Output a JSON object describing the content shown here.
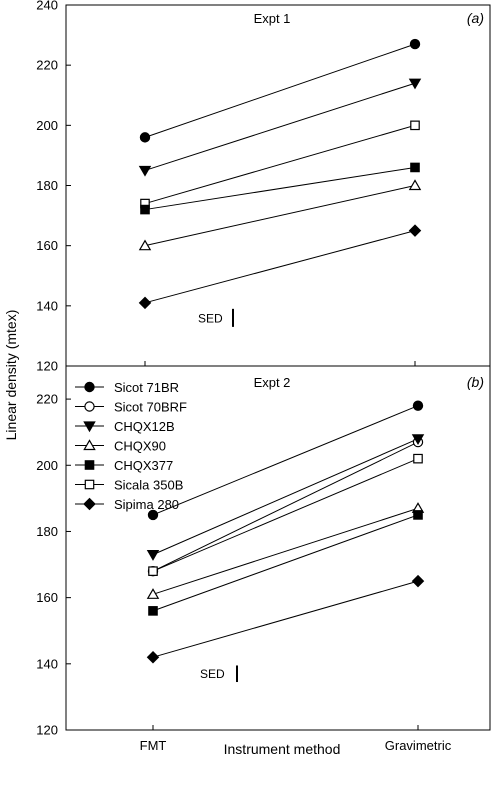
{
  "figure": {
    "ylabel": "Linear density (mtex)",
    "xlabel": "Instrument method",
    "sed_label": "SED"
  },
  "chart_data": [
    {
      "type": "line",
      "panel_label": "(a)",
      "title": "Expt 1",
      "categories": [
        "FMT",
        "Gravimetric"
      ],
      "ylim": [
        120,
        240
      ],
      "yticks": [
        120,
        140,
        160,
        180,
        200,
        220,
        240
      ],
      "sed": 6,
      "series": [
        {
          "marker": "circle-filled",
          "values": [
            196,
            227
          ]
        },
        {
          "marker": "triangle-down-filled",
          "values": [
            185,
            214
          ]
        },
        {
          "marker": "square-open",
          "values": [
            174,
            200
          ]
        },
        {
          "marker": "square-filled",
          "values": [
            172,
            186
          ]
        },
        {
          "marker": "triangle-up-open",
          "values": [
            160,
            180
          ]
        },
        {
          "marker": "diamond-filled",
          "values": [
            141,
            165
          ]
        }
      ]
    },
    {
      "type": "line",
      "panel_label": "(b)",
      "title": "Expt 2",
      "categories": [
        "FMT",
        "Gravimetric"
      ],
      "ylim": [
        120,
        230
      ],
      "yticks": [
        120,
        140,
        160,
        180,
        200,
        220
      ],
      "sed": 5,
      "legend": "top-left",
      "series": [
        {
          "name": "Sicot 71BR",
          "marker": "circle-filled",
          "values": [
            185,
            218
          ]
        },
        {
          "name": "Sicot 70BRF",
          "marker": "circle-open",
          "values": [
            168,
            207
          ]
        },
        {
          "name": "CHQX12B",
          "marker": "triangle-down-filled",
          "values": [
            173,
            208
          ]
        },
        {
          "name": "CHQX90",
          "marker": "triangle-up-open",
          "values": [
            161,
            187
          ]
        },
        {
          "name": "CHQX377",
          "marker": "square-filled",
          "values": [
            156,
            185
          ]
        },
        {
          "name": "Sicala 350B",
          "marker": "square-open",
          "values": [
            168,
            202
          ]
        },
        {
          "name": "Sipima 280",
          "marker": "diamond-filled",
          "values": [
            142,
            165
          ]
        }
      ]
    }
  ]
}
